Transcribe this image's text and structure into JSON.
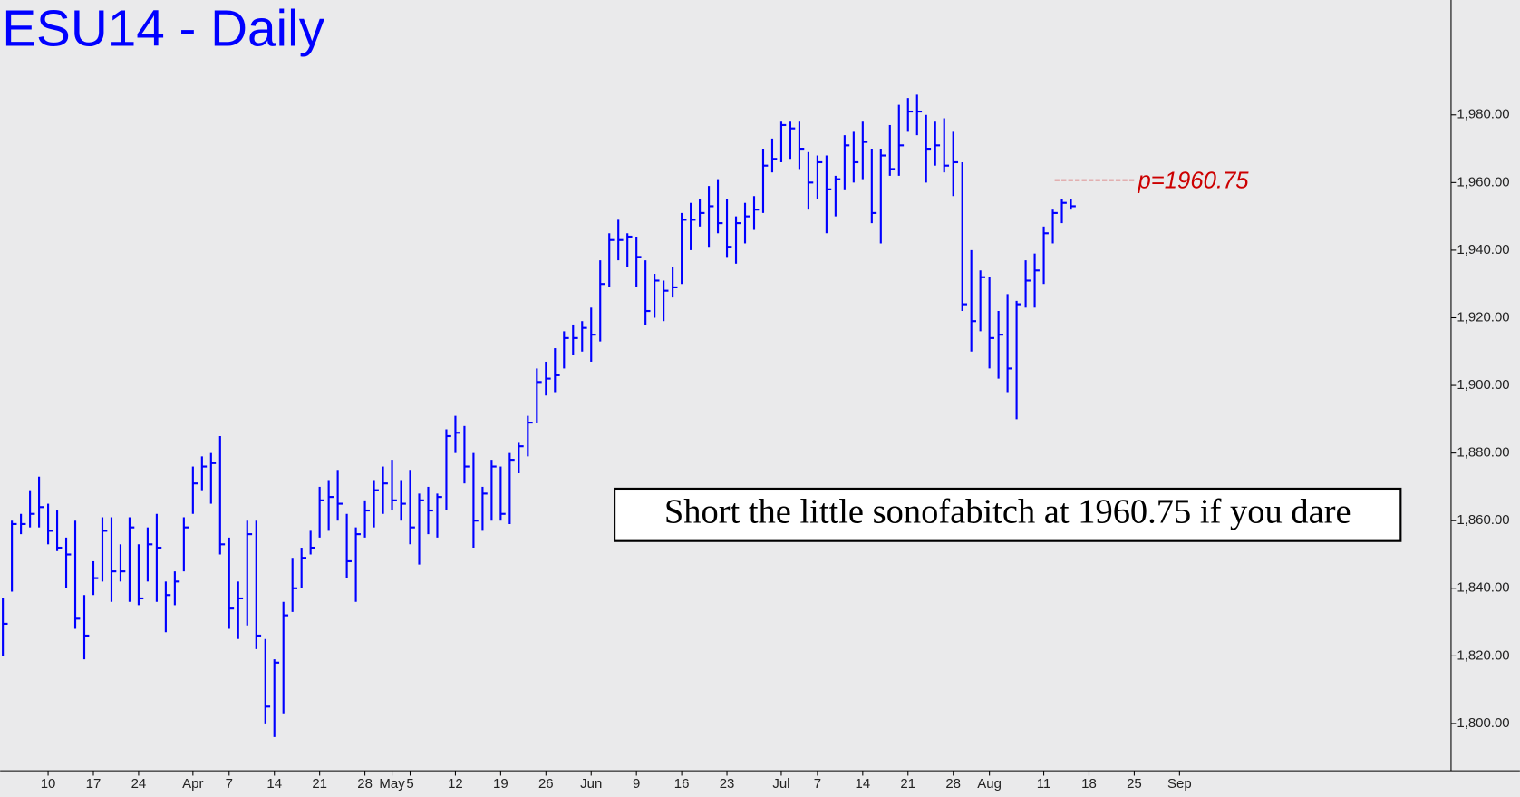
{
  "chart_data": {
    "type": "hlc",
    "title": "ESU14 - Daily",
    "color": "#0000ff",
    "xlim": [
      -0.3,
      160
    ],
    "xticks": [
      {
        "value": 5,
        "label": "10"
      },
      {
        "value": 10,
        "label": "17"
      },
      {
        "value": 15,
        "label": "24"
      },
      {
        "value": 21,
        "label": "Apr"
      },
      {
        "value": 25,
        "label": "7"
      },
      {
        "value": 30,
        "label": "14"
      },
      {
        "value": 35,
        "label": "21"
      },
      {
        "value": 40,
        "label": "28"
      },
      {
        "value": 43,
        "label": "May"
      },
      {
        "value": 45,
        "label": "5"
      },
      {
        "value": 50,
        "label": "12"
      },
      {
        "value": 55,
        "label": "19"
      },
      {
        "value": 60,
        "label": "26"
      },
      {
        "value": 65,
        "label": "Jun"
      },
      {
        "value": 70,
        "label": "9"
      },
      {
        "value": 75,
        "label": "16"
      },
      {
        "value": 80,
        "label": "23"
      },
      {
        "value": 86,
        "label": "Jul"
      },
      {
        "value": 90,
        "label": "7"
      },
      {
        "value": 95,
        "label": "14"
      },
      {
        "value": 100,
        "label": "21"
      },
      {
        "value": 105,
        "label": "28"
      },
      {
        "value": 109,
        "label": "Aug"
      },
      {
        "value": 115,
        "label": "11"
      },
      {
        "value": 120,
        "label": "18"
      },
      {
        "value": 125,
        "label": "25"
      },
      {
        "value": 130,
        "label": "Sep"
      }
    ],
    "ylim": [
      1786,
      2014
    ],
    "yticks": [
      {
        "value": 1800,
        "label": "1,800.00"
      },
      {
        "value": 1820,
        "label": "1,820.00"
      },
      {
        "value": 1840,
        "label": "1,840.00"
      },
      {
        "value": 1860,
        "label": "1,860.00"
      },
      {
        "value": 1880,
        "label": "1,880.00"
      },
      {
        "value": 1900,
        "label": "1,900.00"
      },
      {
        "value": 1920,
        "label": "1,920.00"
      },
      {
        "value": 1940,
        "label": "1,940.00"
      },
      {
        "value": 1960,
        "label": "1,960.00"
      },
      {
        "value": 1980,
        "label": "1,980.00"
      }
    ],
    "high": [
      1837,
      1860,
      1862,
      1869,
      1873,
      1865,
      1863,
      1855,
      1860,
      1838,
      1848,
      1861,
      1861,
      1853,
      1861,
      1853,
      1858,
      1862,
      1842,
      1845,
      1861,
      1876,
      1879,
      1880,
      1885,
      1855,
      1842,
      1860,
      1860,
      1825,
      1819,
      1836,
      1849,
      1852,
      1857,
      1870,
      1872,
      1875,
      1862,
      1858,
      1866,
      1872,
      1876,
      1878,
      1872,
      1875,
      1868,
      1870,
      1868,
      1887,
      1891,
      1888,
      1880,
      1870,
      1878,
      1876,
      1880,
      1883,
      1891,
      1905,
      1907,
      1911,
      1916,
      1918,
      1919,
      1923,
      1937,
      1945,
      1949,
      1945,
      1944,
      1937,
      1933,
      1931,
      1935,
      1951,
      1954,
      1955,
      1959,
      1961,
      1955,
      1950,
      1954,
      1956,
      1970,
      1973,
      1978,
      1978,
      1978,
      1969,
      1968,
      1968,
      1962,
      1974,
      1975,
      1978,
      1970,
      1970,
      1977,
      1983,
      1985,
      1986,
      1980,
      1978,
      1979,
      1975,
      1966,
      1940,
      1934,
      1932,
      1922,
      1927,
      1925,
      1937,
      1939,
      1947,
      1952,
      1955,
      1955
    ],
    "low": [
      1820,
      1839,
      1856,
      1858,
      1858,
      1853,
      1851,
      1840,
      1828,
      1819,
      1838,
      1842,
      1836,
      1842,
      1836,
      1835,
      1842,
      1836,
      1827,
      1835,
      1845,
      1862,
      1869,
      1865,
      1850,
      1828,
      1825,
      1829,
      1822,
      1800,
      1796,
      1803,
      1833,
      1840,
      1850,
      1855,
      1857,
      1860,
      1843,
      1836,
      1855,
      1858,
      1862,
      1863,
      1860,
      1853,
      1847,
      1856,
      1855,
      1863,
      1880,
      1871,
      1852,
      1857,
      1860,
      1860,
      1859,
      1874,
      1879,
      1889,
      1897,
      1898,
      1905,
      1909,
      1910,
      1907,
      1913,
      1929,
      1937,
      1935,
      1929,
      1918,
      1920,
      1919,
      1926,
      1930,
      1940,
      1947,
      1941,
      1945,
      1938,
      1936,
      1942,
      1946,
      1951,
      1963,
      1966,
      1967,
      1964,
      1952,
      1955,
      1945,
      1950,
      1958,
      1960,
      1961,
      1948,
      1942,
      1962,
      1962,
      1975,
      1974,
      1960,
      1965,
      1963,
      1956,
      1922,
      1910,
      1916,
      1905,
      1902,
      1898,
      1890,
      1923,
      1923,
      1930,
      1942,
      1948,
      1952
    ],
    "close": [
      1829.5,
      1859,
      1859,
      1862,
      1864,
      1857,
      1852,
      1850,
      1831,
      1826,
      1843,
      1857,
      1845,
      1845,
      1858,
      1837,
      1853,
      1852,
      1838,
      1842,
      1858,
      1871,
      1876,
      1877,
      1853,
      1834,
      1837,
      1856,
      1826,
      1805,
      1818,
      1832,
      1840,
      1849,
      1852,
      1866,
      1867,
      1865,
      1848,
      1856,
      1863,
      1869,
      1871,
      1866,
      1865,
      1858,
      1866,
      1863,
      1867,
      1885,
      1886,
      1876,
      1860,
      1868,
      1876,
      1862,
      1878,
      1882,
      1889,
      1901,
      1902,
      1903,
      1914,
      1914,
      1917,
      1915,
      1930,
      1943,
      1943,
      1944,
      1938,
      1922,
      1931,
      1928,
      1929,
      1949,
      1949,
      1951,
      1953,
      1948,
      1941,
      1948,
      1950,
      1952,
      1965,
      1967,
      1977,
      1976,
      1970,
      1960,
      1966,
      1958,
      1961,
      1971,
      1966,
      1972,
      1951,
      1968,
      1964,
      1971,
      1981,
      1981,
      1970,
      1971,
      1965,
      1966,
      1924,
      1919,
      1932,
      1914,
      1915,
      1905,
      1924,
      1931,
      1934,
      1945,
      1951,
      1954,
      1953
    ],
    "target": {
      "value": 1960.75,
      "label": "p=1960.75",
      "color": "#cc0000"
    },
    "annotation": "Short the little sonofabitch at 1960.75 if you dare"
  }
}
